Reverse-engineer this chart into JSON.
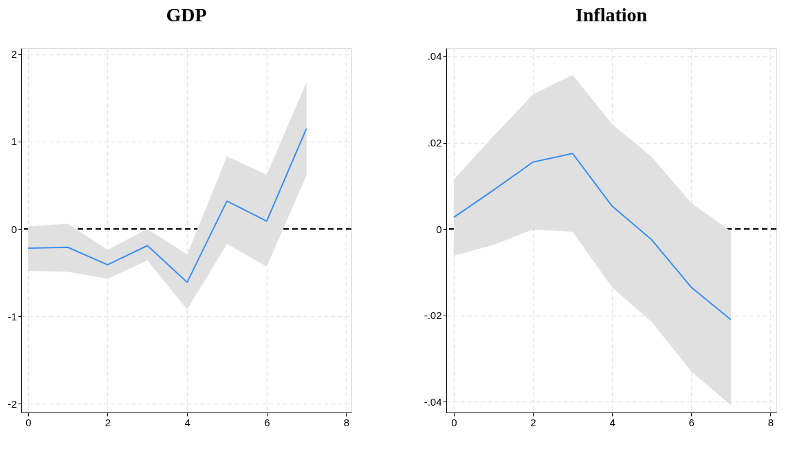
{
  "chart_data": [
    {
      "type": "line",
      "title": "GDP",
      "x": [
        0,
        1,
        2,
        3,
        4,
        5,
        6,
        7
      ],
      "xlim": [
        -0.17,
        8.13
      ],
      "xticks": [
        0,
        2,
        4,
        6,
        8
      ],
      "ylim": [
        -2.1,
        2.07
      ],
      "yticks": [
        -2,
        -1,
        0,
        1,
        2
      ],
      "grid": true,
      "series": [
        {
          "color": "#3a8ef2",
          "values": [
            -0.22,
            -0.21,
            -0.41,
            -0.19,
            -0.61,
            0.32,
            0.09,
            1.15
          ],
          "lower": [
            -0.48,
            -0.49,
            -0.57,
            -0.36,
            -0.92,
            -0.17,
            -0.43,
            0.61
          ],
          "upper": [
            0.03,
            0.06,
            -0.24,
            0.0,
            -0.29,
            0.83,
            0.62,
            1.68
          ]
        }
      ],
      "ref_lines": [
        {
          "axis": "y",
          "value": 0,
          "color": "#000000",
          "line_style": "dashed"
        }
      ]
    },
    {
      "type": "line",
      "title": "Inflation",
      "x": [
        0,
        1,
        2,
        3,
        4,
        5,
        6,
        7
      ],
      "xlim": [
        -0.19,
        8.15
      ],
      "xticks": [
        0,
        2,
        4,
        6,
        8
      ],
      "ylim": [
        -0.0425,
        0.0419
      ],
      "yticks": [
        {
          "value": -0.04,
          "label": "-.04"
        },
        {
          "value": -0.02,
          "label": "-.02"
        },
        0,
        {
          "value": 0.02,
          "label": ".02"
        },
        {
          "value": 0.04,
          "label": ".04"
        }
      ],
      "grid": true,
      "series": [
        {
          "color": "#3a8ef2",
          "values": [
            0.0027,
            0.009,
            0.0155,
            0.0175,
            0.0053,
            -0.0025,
            -0.0135,
            -0.021
          ],
          "lower": [
            -0.0062,
            -0.0037,
            -0.0001,
            -0.0006,
            -0.0135,
            -0.0215,
            -0.033,
            -0.0408
          ],
          "upper": [
            0.0115,
            0.0215,
            0.0312,
            0.0357,
            0.0243,
            0.0167,
            0.006,
            -0.0005
          ]
        }
      ],
      "ref_lines": [
        {
          "axis": "y",
          "value": 0,
          "color": "#000000",
          "line_style": "dashed"
        }
      ]
    }
  ]
}
